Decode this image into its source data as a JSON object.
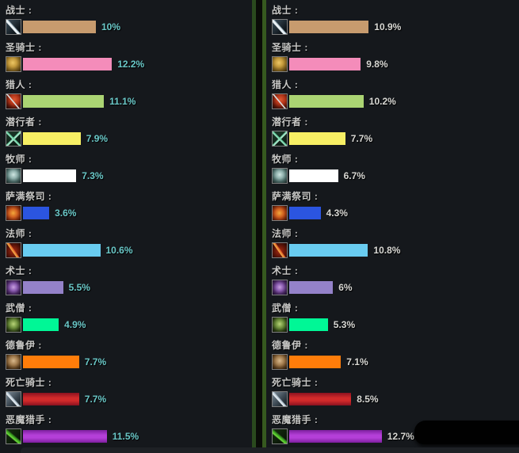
{
  "panels": [
    {
      "side": "left",
      "percent_color": "#6ac8c8",
      "rows": [
        {
          "label": "战士 :",
          "value": 10,
          "display": "10%",
          "bar_color": "#c79b6e",
          "icon": "warrior"
        },
        {
          "label": "圣骑士 :",
          "value": 12.2,
          "display": "12.2%",
          "bar_color": "#f48cba",
          "icon": "paladin"
        },
        {
          "label": "猎人 :",
          "value": 11.1,
          "display": "11.1%",
          "bar_color": "#abd473",
          "icon": "hunter"
        },
        {
          "label": "潜行者 :",
          "value": 7.9,
          "display": "7.9%",
          "bar_color": "#f7ef64",
          "icon": "rogue"
        },
        {
          "label": "牧师 :",
          "value": 7.3,
          "display": "7.3%",
          "bar_color": "#ffffff",
          "icon": "priest"
        },
        {
          "label": "萨满祭司 :",
          "value": 3.6,
          "display": "3.6%",
          "bar_color": "#2b55e0",
          "icon": "shaman"
        },
        {
          "label": "法师 :",
          "value": 10.6,
          "display": "10.6%",
          "bar_color": "#69ccf0",
          "icon": "mage"
        },
        {
          "label": "术士 :",
          "value": 5.5,
          "display": "5.5%",
          "bar_color": "#9482c9",
          "icon": "warlock"
        },
        {
          "label": "武僧 :",
          "value": 4.9,
          "display": "4.9%",
          "bar_color": "#00f796",
          "icon": "monk"
        },
        {
          "label": "德鲁伊 :",
          "value": 7.7,
          "display": "7.7%",
          "bar_color": "#ff7d0a",
          "icon": "druid"
        },
        {
          "label": "死亡骑士 :",
          "value": 7.7,
          "display": "7.7%",
          "bar_color": "#d22a2a",
          "edge_color": "#8a1220",
          "icon": "deathknight"
        },
        {
          "label": "恶魔猎手 :",
          "value": 11.5,
          "display": "11.5%",
          "bar_color": "#b43fd8",
          "edge_color": "#7d1f9e",
          "icon": "demonhunter"
        }
      ]
    },
    {
      "side": "right",
      "percent_color": "#d8d8d4",
      "rows": [
        {
          "label": "战士 :",
          "value": 10.9,
          "display": "10.9%",
          "bar_color": "#c79b6e",
          "icon": "warrior"
        },
        {
          "label": "圣骑士 :",
          "value": 9.8,
          "display": "9.8%",
          "bar_color": "#f48cba",
          "icon": "paladin"
        },
        {
          "label": "猎人 :",
          "value": 10.2,
          "display": "10.2%",
          "bar_color": "#abd473",
          "icon": "hunter"
        },
        {
          "label": "潜行者 :",
          "value": 7.7,
          "display": "7.7%",
          "bar_color": "#f7ef64",
          "icon": "rogue"
        },
        {
          "label": "牧师 :",
          "value": 6.7,
          "display": "6.7%",
          "bar_color": "#ffffff",
          "icon": "priest"
        },
        {
          "label": "萨满祭司 :",
          "value": 4.3,
          "display": "4.3%",
          "bar_color": "#2b55e0",
          "icon": "shaman"
        },
        {
          "label": "法师 :",
          "value": 10.8,
          "display": "10.8%",
          "bar_color": "#69ccf0",
          "icon": "mage"
        },
        {
          "label": "术士 :",
          "value": 6,
          "display": "6%",
          "bar_color": "#9482c9",
          "icon": "warlock"
        },
        {
          "label": "武僧 :",
          "value": 5.3,
          "display": "5.3%",
          "bar_color": "#00f796",
          "icon": "monk"
        },
        {
          "label": "德鲁伊 :",
          "value": 7.1,
          "display": "7.1%",
          "bar_color": "#ff7d0a",
          "icon": "druid"
        },
        {
          "label": "死亡骑士 :",
          "value": 8.5,
          "display": "8.5%",
          "bar_color": "#d22a2a",
          "edge_color": "#8a1220",
          "icon": "deathknight"
        },
        {
          "label": "恶魔猎手 :",
          "value": 12.7,
          "display": "12.7%",
          "bar_color": "#b43fd8",
          "edge_color": "#7d1f9e",
          "icon": "demonhunter"
        }
      ]
    }
  ],
  "chart_data": [
    {
      "type": "bar",
      "orientation": "horizontal",
      "title": "",
      "xlabel": "",
      "ylabel": "",
      "grid": false,
      "legend": "none",
      "categories": [
        "战士",
        "圣骑士",
        "猎人",
        "潜行者",
        "牧师",
        "萨满祭司",
        "法师",
        "术士",
        "武僧",
        "德鲁伊",
        "死亡骑士",
        "恶魔猎手"
      ],
      "values": [
        10,
        12.2,
        11.1,
        7.9,
        7.3,
        3.6,
        10.6,
        5.5,
        4.9,
        7.7,
        7.7,
        11.5
      ],
      "value_labels": [
        "10%",
        "12.2%",
        "11.1%",
        "7.9%",
        "7.3%",
        "3.6%",
        "10.6%",
        "5.5%",
        "4.9%",
        "7.7%",
        "7.7%",
        "11.5%"
      ],
      "bar_colors": [
        "#c79b6e",
        "#f48cba",
        "#abd473",
        "#f7ef64",
        "#ffffff",
        "#2b55e0",
        "#69ccf0",
        "#9482c9",
        "#00f796",
        "#ff7d0a",
        "#d22a2a",
        "#b43fd8"
      ],
      "xlim": [
        0,
        13
      ]
    },
    {
      "type": "bar",
      "orientation": "horizontal",
      "title": "",
      "xlabel": "",
      "ylabel": "",
      "grid": false,
      "legend": "none",
      "categories": [
        "战士",
        "圣骑士",
        "猎人",
        "潜行者",
        "牧师",
        "萨满祭司",
        "法师",
        "术士",
        "武僧",
        "德鲁伊",
        "死亡骑士",
        "恶魔猎手"
      ],
      "values": [
        10.9,
        9.8,
        10.2,
        7.7,
        6.7,
        4.3,
        10.8,
        6,
        5.3,
        7.1,
        8.5,
        12.7
      ],
      "value_labels": [
        "10.9%",
        "9.8%",
        "10.2%",
        "7.7%",
        "6.7%",
        "4.3%",
        "10.8%",
        "6%",
        "5.3%",
        "7.1%",
        "8.5%",
        "12.7%"
      ],
      "bar_colors": [
        "#c79b6e",
        "#f48cba",
        "#abd473",
        "#f7ef64",
        "#ffffff",
        "#2b55e0",
        "#69ccf0",
        "#9482c9",
        "#00f796",
        "#ff7d0a",
        "#d22a2a",
        "#b43fd8"
      ],
      "xlim": [
        0,
        13
      ]
    }
  ],
  "colors": {
    "panel_background": "#15181c",
    "divider_green_left": "#2a4a1e",
    "divider_green_right": "#36591f",
    "gap": "#0a0c08",
    "label_text": "#c8c8c6",
    "percent_left": "#6ac8c8",
    "percent_right": "#d8d8d4"
  }
}
